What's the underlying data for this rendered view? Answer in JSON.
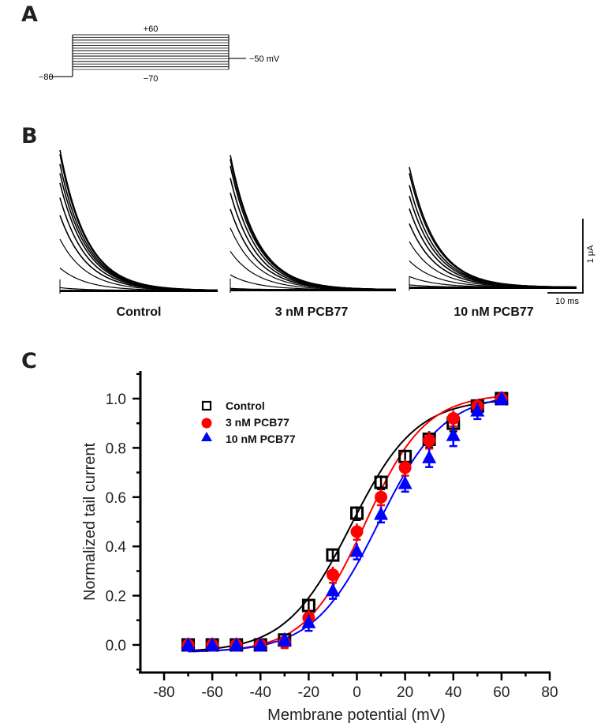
{
  "panels": {
    "a": {
      "letter": "A"
    },
    "b": {
      "letter": "B"
    },
    "c": {
      "letter": "C"
    }
  },
  "protocol": {
    "top_label": "+60",
    "bottom_label": "−70",
    "holding_label": "−80",
    "tail_label": "−50 mV",
    "holding_mV": -80,
    "tail_mV": -50,
    "step_min_mV": -70,
    "step_max_mV": 60,
    "step_increment_mV": 10
  },
  "traces": {
    "conditions": [
      {
        "label": "Control",
        "relative_peak": 1.0
      },
      {
        "label": "3 nM PCB77",
        "relative_peak": 0.98
      },
      {
        "label": "10 nM PCB77",
        "relative_peak": 0.94
      }
    ],
    "scale_bar": {
      "current_label": "1 μA",
      "time_label": "10 ms"
    }
  },
  "chart_data": {
    "type": "scatter",
    "title": "",
    "xlabel": "Membrane potential (mV)",
    "ylabel": "Normalized tail current",
    "xlim": [
      -90,
      80
    ],
    "ylim": [
      -0.1,
      1.1
    ],
    "xticks": [
      -80,
      -60,
      -40,
      -20,
      0,
      20,
      40,
      60,
      80
    ],
    "xtick_labels": [
      "-80",
      "-60",
      "-40",
      "-20",
      "0",
      "20",
      "40",
      "60",
      "80"
    ],
    "yticks": [
      0.0,
      0.2,
      0.4,
      0.6,
      0.8,
      1.0
    ],
    "ytick_labels": [
      "0.0",
      "0.2",
      "0.4",
      "0.6",
      "0.8",
      "1.0"
    ],
    "grid": false,
    "legend_position": "upper-left",
    "x": [
      -70,
      -60,
      -50,
      -40,
      -30,
      -20,
      -10,
      0,
      10,
      20,
      30,
      40,
      50,
      60
    ],
    "series": [
      {
        "name": "Control",
        "marker": "open-square",
        "color": "#000000",
        "values": [
          0.0,
          0.0,
          0.0,
          0.0,
          0.02,
          0.16,
          0.365,
          0.535,
          0.66,
          0.765,
          0.835,
          0.9,
          0.97,
          1.0
        ],
        "errors": [
          0.01,
          0.01,
          0.01,
          0.01,
          0.01,
          0.01,
          0.01,
          0.015,
          0.015,
          0.015,
          0.02,
          0.02,
          0.015,
          0.01
        ],
        "fit": {
          "v_half": -2.5,
          "slope": 13.5,
          "bottom": -0.03,
          "top": 1.0
        }
      },
      {
        "name": "3 nM PCB77",
        "marker": "filled-circle",
        "color": "#ff0000",
        "values": [
          0.0,
          0.0,
          0.0,
          0.0,
          0.01,
          0.11,
          0.285,
          0.46,
          0.6,
          0.72,
          0.83,
          0.92,
          0.97,
          1.0
        ],
        "errors": [
          0.01,
          0.01,
          0.01,
          0.01,
          0.01,
          0.02,
          0.02,
          0.02,
          0.02,
          0.02,
          0.02,
          0.02,
          0.015,
          0.01
        ],
        "fit": {
          "v_half": 3.5,
          "slope": 12.5,
          "bottom": -0.03,
          "top": 1.02
        }
      },
      {
        "name": "10 nM PCB77",
        "marker": "filled-triangle",
        "color": "#0000ff",
        "values": [
          0.0,
          0.0,
          0.0,
          0.0,
          0.02,
          0.09,
          0.22,
          0.38,
          0.53,
          0.655,
          0.76,
          0.85,
          0.95,
          1.0
        ],
        "errors": [
          0.01,
          0.01,
          0.01,
          0.01,
          0.01,
          0.02,
          0.02,
          0.02,
          0.02,
          0.02,
          0.025,
          0.03,
          0.02,
          0.01
        ],
        "fit": {
          "v_half": 9.0,
          "slope": 13.5,
          "bottom": -0.03,
          "top": 1.02
        }
      }
    ]
  }
}
